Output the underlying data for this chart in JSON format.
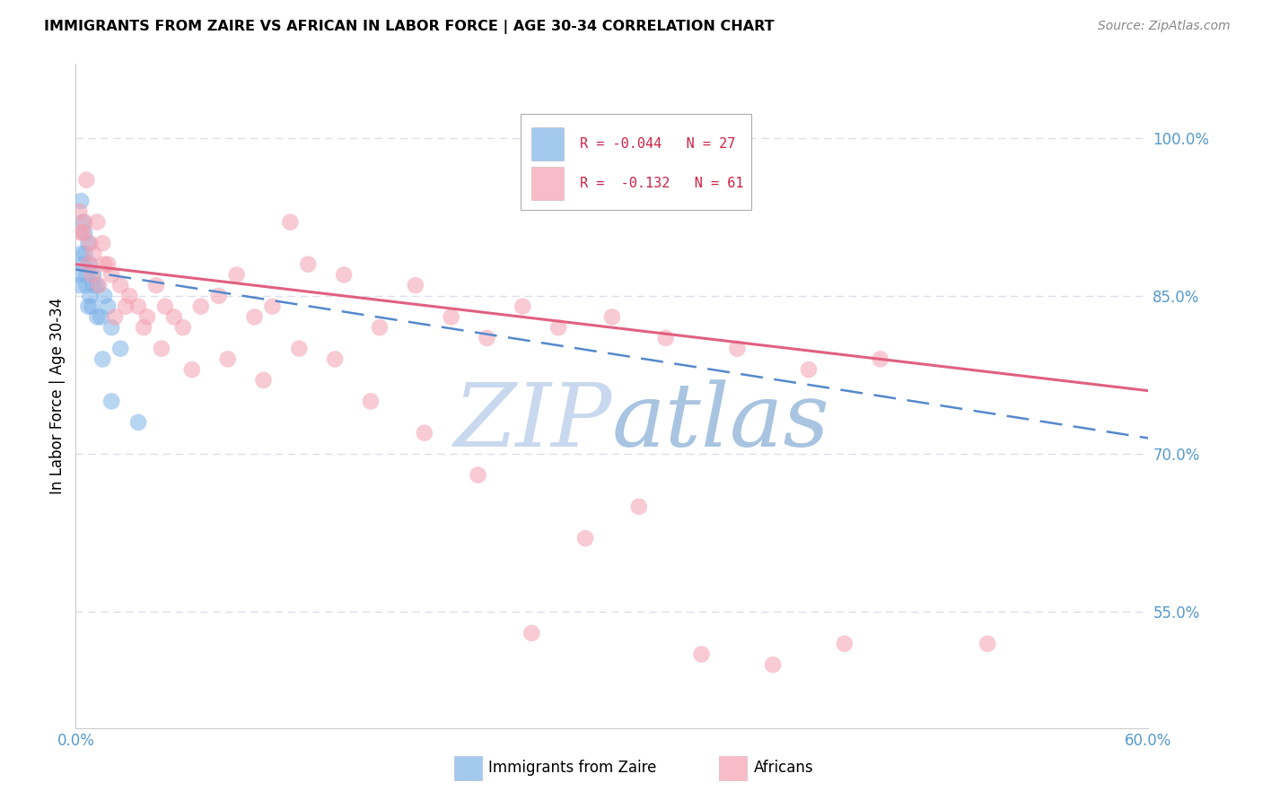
{
  "title": "IMMIGRANTS FROM ZAIRE VS AFRICAN IN LABOR FORCE | AGE 30-34 CORRELATION CHART",
  "source": "Source: ZipAtlas.com",
  "ylabel": "In Labor Force | Age 30-34",
  "x_min": 0.0,
  "x_max": 0.6,
  "y_min": 0.44,
  "y_max": 1.07,
  "x_ticks": [
    0.0,
    0.1,
    0.2,
    0.3,
    0.4,
    0.5,
    0.6
  ],
  "x_ticklabels": [
    "0.0%",
    "",
    "",
    "",
    "",
    "",
    "60.0%"
  ],
  "y_ticks_right": [
    0.55,
    0.7,
    0.85,
    1.0
  ],
  "y_ticklabels_right": [
    "55.0%",
    "70.0%",
    "85.0%",
    "100.0%"
  ],
  "color_blue": "#7EB3E8",
  "color_pink": "#F4A0B0",
  "color_trendline_blue": "#5588CC",
  "color_trendline_pink": "#E06080",
  "watermark_zip": "ZIP",
  "watermark_atlas": "atlas",
  "watermark_color_zip": "#C8D8EE",
  "watermark_color_atlas": "#A8C4E0",
  "background_color": "#FFFFFF",
  "grid_color": "#DDDDEE",
  "tick_color": "#5599CC",
  "legend_text_color": "#CC2244",
  "zaire_x": [
    0.001,
    0.002,
    0.003,
    0.004,
    0.005,
    0.006,
    0.007,
    0.008,
    0.009,
    0.01,
    0.012,
    0.014,
    0.016,
    0.018,
    0.02,
    0.025,
    0.003,
    0.004,
    0.005,
    0.006,
    0.007,
    0.008,
    0.01,
    0.012,
    0.015,
    0.02,
    0.035
  ],
  "zaire_y": [
    0.87,
    0.86,
    0.89,
    0.88,
    0.91,
    0.87,
    0.9,
    0.85,
    0.84,
    0.87,
    0.86,
    0.83,
    0.85,
    0.84,
    0.82,
    0.8,
    0.94,
    0.92,
    0.89,
    0.86,
    0.84,
    0.88,
    0.86,
    0.83,
    0.79,
    0.75,
    0.73
  ],
  "african_x": [
    0.002,
    0.004,
    0.006,
    0.008,
    0.01,
    0.012,
    0.015,
    0.018,
    0.02,
    0.025,
    0.03,
    0.035,
    0.04,
    0.045,
    0.05,
    0.055,
    0.06,
    0.07,
    0.08,
    0.09,
    0.1,
    0.11,
    0.12,
    0.13,
    0.15,
    0.17,
    0.19,
    0.21,
    0.23,
    0.25,
    0.27,
    0.3,
    0.33,
    0.37,
    0.41,
    0.45,
    0.003,
    0.005,
    0.007,
    0.009,
    0.013,
    0.016,
    0.022,
    0.028,
    0.038,
    0.048,
    0.065,
    0.085,
    0.105,
    0.125,
    0.145,
    0.165,
    0.195,
    0.225,
    0.255,
    0.285,
    0.315,
    0.35,
    0.39,
    0.43,
    0.51
  ],
  "african_y": [
    0.93,
    0.91,
    0.96,
    0.9,
    0.89,
    0.92,
    0.9,
    0.88,
    0.87,
    0.86,
    0.85,
    0.84,
    0.83,
    0.86,
    0.84,
    0.83,
    0.82,
    0.84,
    0.85,
    0.87,
    0.83,
    0.84,
    0.92,
    0.88,
    0.87,
    0.82,
    0.86,
    0.83,
    0.81,
    0.84,
    0.82,
    0.83,
    0.81,
    0.8,
    0.78,
    0.79,
    0.91,
    0.92,
    0.88,
    0.87,
    0.86,
    0.88,
    0.83,
    0.84,
    0.82,
    0.8,
    0.78,
    0.79,
    0.77,
    0.8,
    0.79,
    0.75,
    0.72,
    0.68,
    0.53,
    0.62,
    0.65,
    0.51,
    0.5,
    0.52,
    0.52
  ],
  "trendline_zaire_x0": 0.0,
  "trendline_zaire_x1": 0.6,
  "trendline_zaire_y0": 0.875,
  "trendline_zaire_y1": 0.715,
  "trendline_african_x0": 0.0,
  "trendline_african_x1": 0.6,
  "trendline_african_y0": 0.88,
  "trendline_african_y1": 0.76
}
